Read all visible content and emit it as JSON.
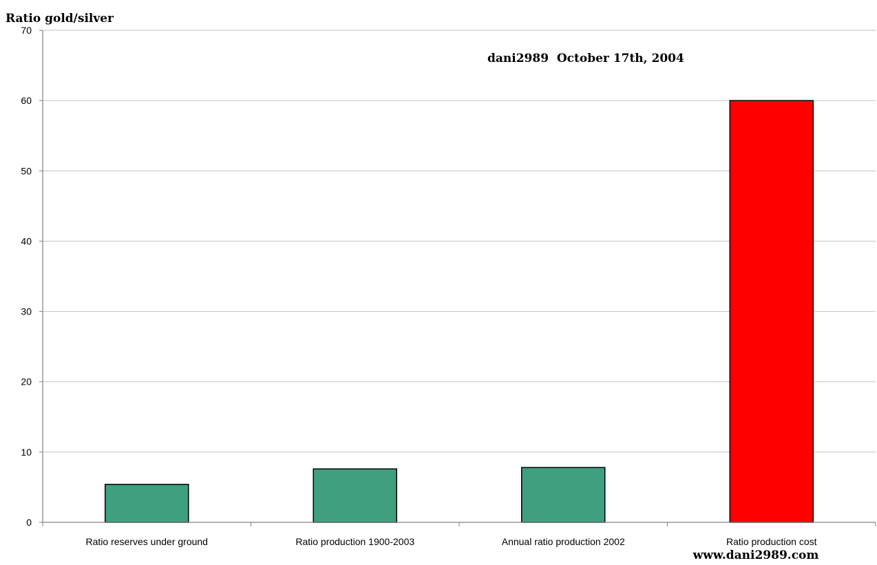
{
  "chart_data": {
    "type": "bar",
    "ylabel": "Ratio gold/silver",
    "annotation": "dani2989  October 17th, 2004",
    "footer": "www.dani2989.com",
    "categories": [
      "Ratio reserves under ground",
      "Ratio production 1900-2003",
      "Annual ratio production 2002",
      "Ratio production cost"
    ],
    "values": [
      5.4,
      7.6,
      7.8,
      60
    ],
    "bar_colors": [
      "#3f9f7f",
      "#3f9f7f",
      "#3f9f7f",
      "#ff0000"
    ],
    "ylim": [
      0,
      70
    ],
    "yticks": [
      0,
      10,
      20,
      30,
      40,
      50,
      60,
      70
    ],
    "grid": true,
    "legend": "none"
  },
  "colors": {
    "grid": "#c0c0c0",
    "axis": "#808080",
    "bar_edge": "#000000",
    "text": "#000000"
  }
}
